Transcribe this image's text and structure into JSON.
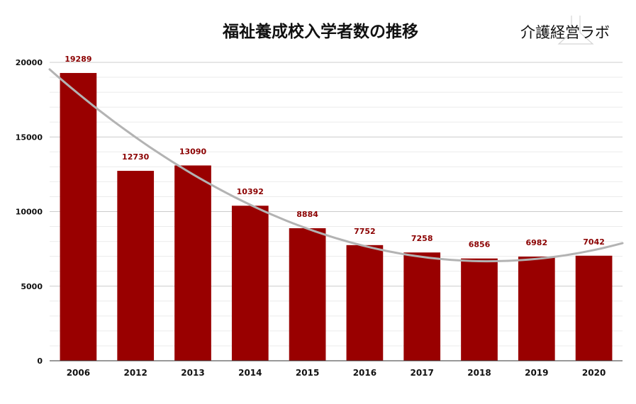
{
  "chart_data": {
    "type": "bar",
    "title": "福祉養成校入学者数の推移",
    "categories": [
      "2006",
      "2012",
      "2013",
      "2014",
      "2015",
      "2016",
      "2017",
      "2018",
      "2019",
      "2020"
    ],
    "values": [
      19289,
      12730,
      13090,
      10392,
      8884,
      7752,
      7258,
      6856,
      6982,
      7042
    ],
    "ylim": [
      0,
      20000
    ],
    "yticks": [
      "0",
      "5000",
      "10000",
      "15000",
      "20000"
    ],
    "grid": true,
    "trendline": true,
    "bar_color": "#990000",
    "label_color": "#8b0000",
    "trend_color": "#b3b3b3"
  },
  "brand": {
    "logo_text": "介護経営ラボ"
  }
}
